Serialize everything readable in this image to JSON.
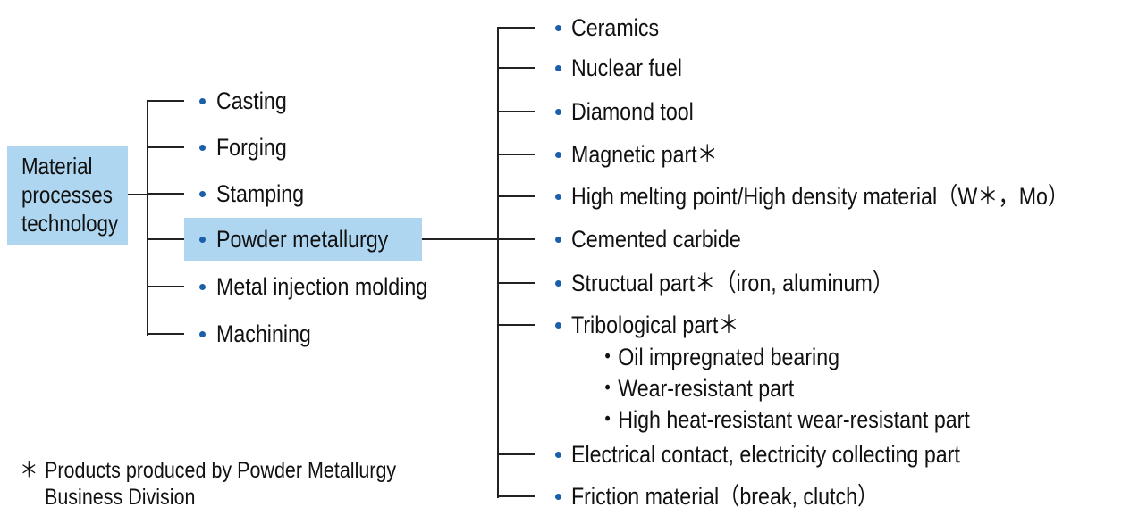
{
  "accent_color": "#aed6f0",
  "bullet_color": "#1a5fa8",
  "root": {
    "lines": [
      "Material",
      "processes",
      "technology"
    ]
  },
  "processes": [
    "Casting",
    "Forging",
    "Stamping",
    "Powder metallurgy",
    "Metal injection molding",
    "Machining"
  ],
  "highlighted_process": "Powder metallurgy",
  "products": [
    "Ceramics",
    "Nuclear fuel",
    "Diamond tool",
    "Magnetic part＊",
    "High melting point/High density material（W＊，Mo）",
    "Cemented carbide",
    "Structual part＊（iron, aluminum）",
    "Tribological part＊",
    "Electrical contact, electricity collecting part",
    "Friction material（break, clutch）"
  ],
  "tribological_subitems": [
    "・Oil impregnated bearing",
    "・Wear-resistant part",
    "・High heat-resistant wear-resistant part"
  ],
  "footnote": {
    "mark": "＊",
    "lines": [
      "Products produced by Powder Metallurgy",
      "Business Division"
    ]
  }
}
